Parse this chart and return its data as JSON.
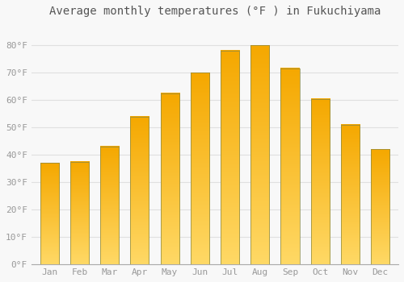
{
  "title": "Average monthly temperatures (°F ) in Fukuchiyama",
  "months": [
    "Jan",
    "Feb",
    "Mar",
    "Apr",
    "May",
    "Jun",
    "Jul",
    "Aug",
    "Sep",
    "Oct",
    "Nov",
    "Dec"
  ],
  "values": [
    37,
    37.5,
    43,
    54,
    62.5,
    70,
    78,
    80,
    71.5,
    60.5,
    51,
    42
  ],
  "bar_color_top": "#F5A800",
  "bar_color_bottom": "#FFD966",
  "bar_edge_color": "#888844",
  "ylim": [
    0,
    88
  ],
  "yticks": [
    0,
    10,
    20,
    30,
    40,
    50,
    60,
    70,
    80
  ],
  "ytick_labels": [
    "0°F",
    "10°F",
    "20°F",
    "30°F",
    "40°F",
    "50°F",
    "60°F",
    "70°F",
    "80°F"
  ],
  "background_color": "#f8f8f8",
  "grid_color": "#e0e0e0",
  "title_fontsize": 10,
  "tick_fontsize": 8,
  "font_family": "monospace"
}
